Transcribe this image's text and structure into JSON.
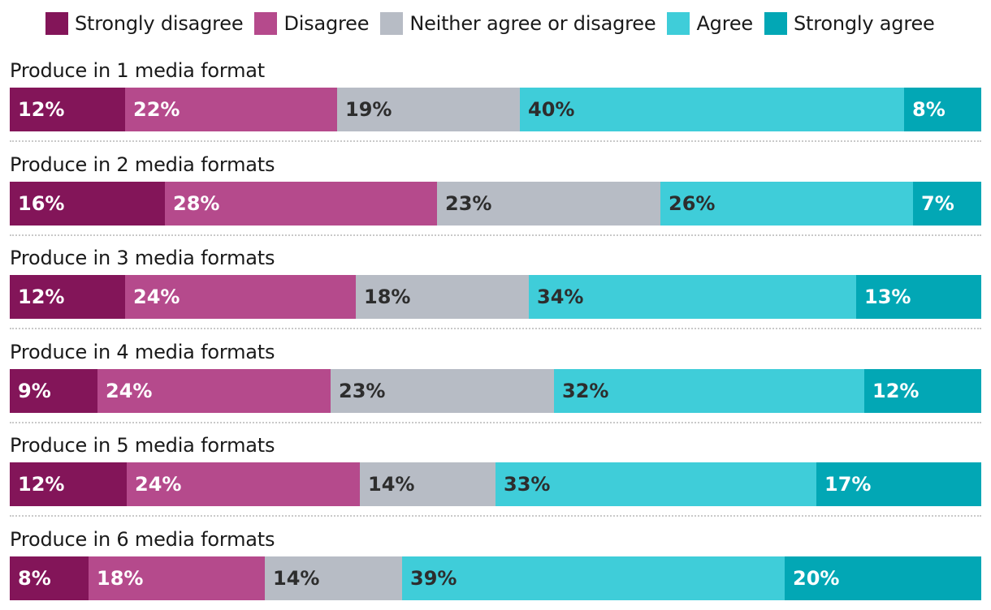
{
  "chart_data": {
    "type": "bar",
    "orientation": "horizontal",
    "stacked": true,
    "normalized": true,
    "title": "",
    "xlabel": "",
    "ylabel": "",
    "legend_position": "top",
    "categories": [
      "Produce in 1 media format",
      "Produce in 2 media formats",
      "Produce in 3 media formats",
      "Produce in 4 media formats",
      "Produce in 5 media formats",
      "Produce in 6 media formats"
    ],
    "series": [
      {
        "name": "Strongly disagree",
        "color": "#831559",
        "text_color": "#ffffff",
        "values": [
          12,
          16,
          12,
          9,
          12,
          8
        ],
        "labels": [
          "12%",
          "16%",
          "12%",
          "9%",
          "12%",
          "8%"
        ]
      },
      {
        "name": "Disagree",
        "color": "#b54a8c",
        "text_color": "#ffffff",
        "values": [
          22,
          28,
          24,
          24,
          24,
          18
        ],
        "labels": [
          "22%",
          "28%",
          "24%",
          "24%",
          "24%",
          "18%"
        ]
      },
      {
        "name": "Neither agree or disagree",
        "color": "#b7bcc5",
        "text_color": "#2d2d2d",
        "values": [
          19,
          23,
          18,
          23,
          14,
          14
        ],
        "labels": [
          "19%",
          "23%",
          "18%",
          "23%",
          "14%",
          "14%"
        ]
      },
      {
        "name": "Agree",
        "color": "#3fcdd9",
        "text_color": "#2d2d2d",
        "values": [
          40,
          26,
          34,
          32,
          33,
          39
        ],
        "labels": [
          "40%",
          "26%",
          "34%",
          "32%",
          "33%",
          "39%"
        ]
      },
      {
        "name": "Strongly agree",
        "color": "#02a7b5",
        "text_color": "#ffffff",
        "values": [
          8,
          7,
          13,
          12,
          17,
          20
        ],
        "labels": [
          "8%",
          "7%",
          "13%",
          "12%",
          "17%",
          "20%"
        ]
      }
    ]
  }
}
